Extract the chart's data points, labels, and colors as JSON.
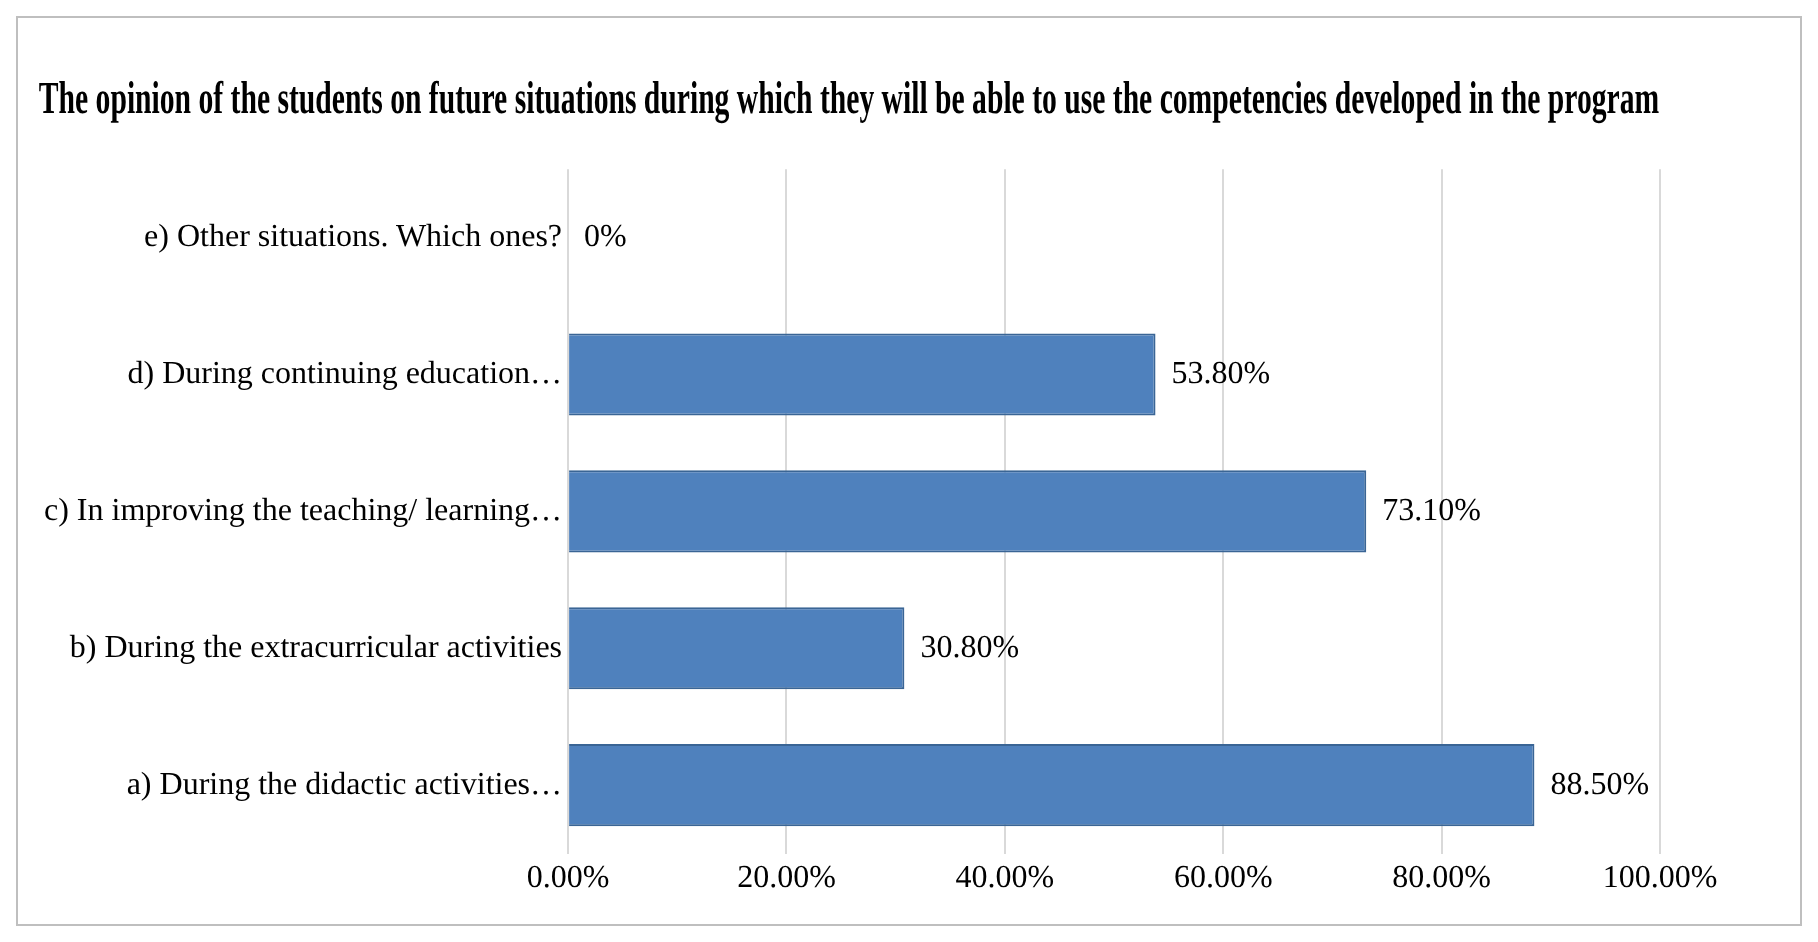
{
  "chart_data": {
    "type": "bar",
    "orientation": "horizontal",
    "title": "The opinion of the students on future situations during which they will be able to use the competencies developed in the program",
    "categories": [
      "e) Other situations. Which ones?",
      "d) During continuing education…",
      "c) In improving the teaching/ learning…",
      "b) During the extracurricular activities",
      "a) During the didactic activities…"
    ],
    "values": [
      0,
      53.8,
      73.1,
      30.8,
      88.5
    ],
    "value_labels": [
      "0%",
      "53.80%",
      "73.10%",
      "30.80%",
      "88.50%"
    ],
    "color": "#4f81bd",
    "xlim": [
      0,
      100
    ],
    "xticks": [
      {
        "value": 0,
        "label": "0.00%"
      },
      {
        "value": 20,
        "label": "20.00%"
      },
      {
        "value": 40,
        "label": "40.00%"
      },
      {
        "value": 60,
        "label": "60.00%"
      },
      {
        "value": 80,
        "label": "80.00%"
      },
      {
        "value": 100,
        "label": "100.00%"
      }
    ],
    "grid": "x",
    "legend": false
  }
}
